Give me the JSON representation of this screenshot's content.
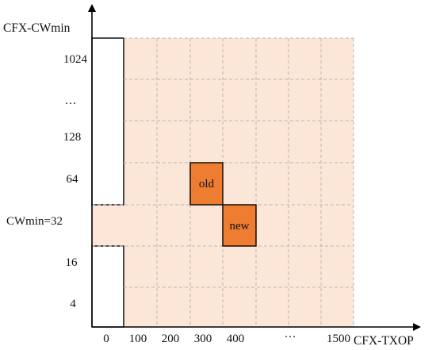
{
  "diagram": {
    "y_axis_title": "CFX-CWmin",
    "x_axis_title": "CFX-TXOP",
    "y_labels": [
      "1024",
      "…",
      "128",
      "64",
      "CWmin=32",
      "16",
      "4"
    ],
    "x_labels": [
      "0",
      "100",
      "200",
      "300",
      "400",
      "…",
      "1500"
    ],
    "cells": {
      "old": {
        "label": "old",
        "txop": "300",
        "cwmin": "64"
      },
      "new": {
        "label": "new",
        "txop": "400",
        "cwmin": "CWmin=32"
      }
    },
    "colors": {
      "region_fill": "#fbe6d8",
      "grid_dash": "#b8b8b8",
      "highlight_fill": "#ef7d31",
      "axis": "#000000",
      "white_cell": "#ffffff"
    }
  }
}
